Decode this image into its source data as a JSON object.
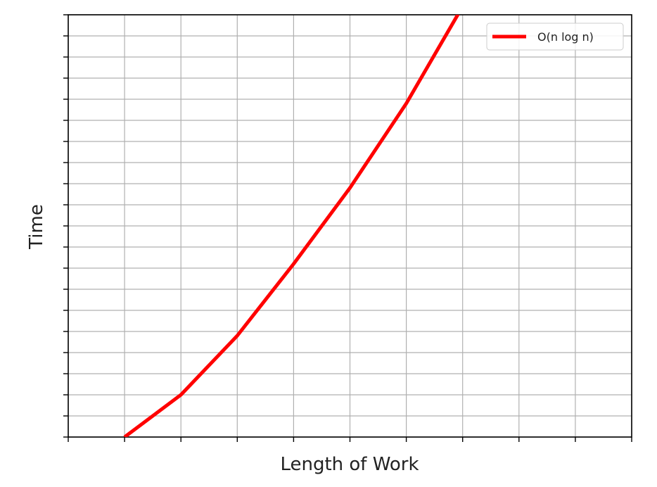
{
  "chart_data": {
    "type": "line",
    "title": "",
    "xlabel": "Length of Work",
    "ylabel": "Time",
    "xlim": [
      0,
      10
    ],
    "ylim": [
      0,
      20
    ],
    "x_tick_labels_shown": false,
    "y_tick_labels_shown": false,
    "grid": true,
    "legend_position": "upper right",
    "series": [
      {
        "name": "O(n log n)",
        "color": "#ff0000",
        "x": [
          1,
          2,
          3,
          4,
          5,
          6,
          7
        ],
        "y": [
          0,
          2,
          4.8,
          8.2,
          11.8,
          15.8,
          20.4
        ]
      }
    ]
  }
}
